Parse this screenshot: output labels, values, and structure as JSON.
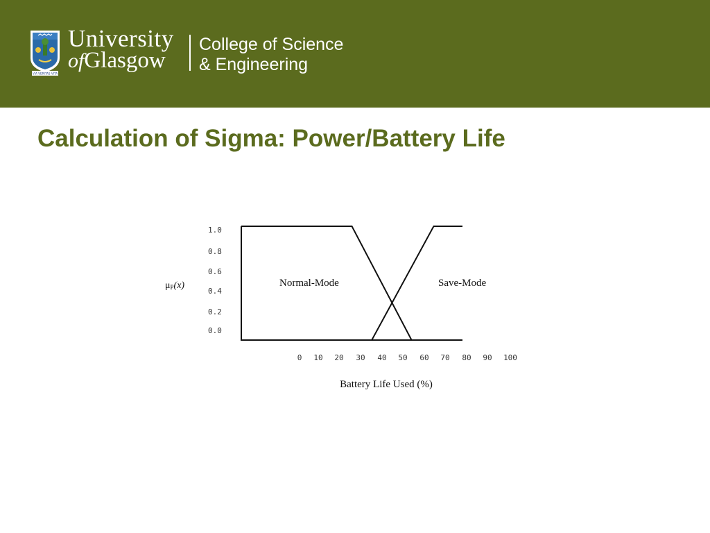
{
  "header": {
    "university_line1": "University",
    "university_line2_of": "of",
    "university_line2_rest": "Glasgow",
    "college_line1": "College of Science",
    "college_line2": "& Engineering",
    "crest_motto": "VIA VERITAS VITA",
    "background_color": "#5b6b1e"
  },
  "slide": {
    "title": "Calculation of Sigma: Power/Battery Life",
    "title_color": "#5b6b1e"
  },
  "chart_data": {
    "type": "line",
    "ylabel_mu": "μ",
    "ylabel_sub": "P",
    "ylabel_arg": "(x)",
    "xlabel": "Battery Life Used (%)",
    "y_ticks": [
      "1.0",
      "0.8",
      "0.6",
      "0.4",
      "0.2",
      "0.0"
    ],
    "x_ticks": [
      "0",
      "10",
      "20",
      "30",
      "40",
      "50",
      "60",
      "70",
      "80",
      "90",
      "100"
    ],
    "ylim": [
      0,
      1
    ],
    "series": [
      {
        "name": "Normal-Mode",
        "points": [
          [
            0,
            1.0
          ],
          [
            50,
            1.0
          ],
          [
            77,
            0.0
          ]
        ]
      },
      {
        "name": "Save-Mode",
        "points": [
          [
            59,
            0.0
          ],
          [
            87,
            1.0
          ],
          [
            100,
            1.0
          ]
        ]
      }
    ],
    "line_color": "#111111"
  }
}
